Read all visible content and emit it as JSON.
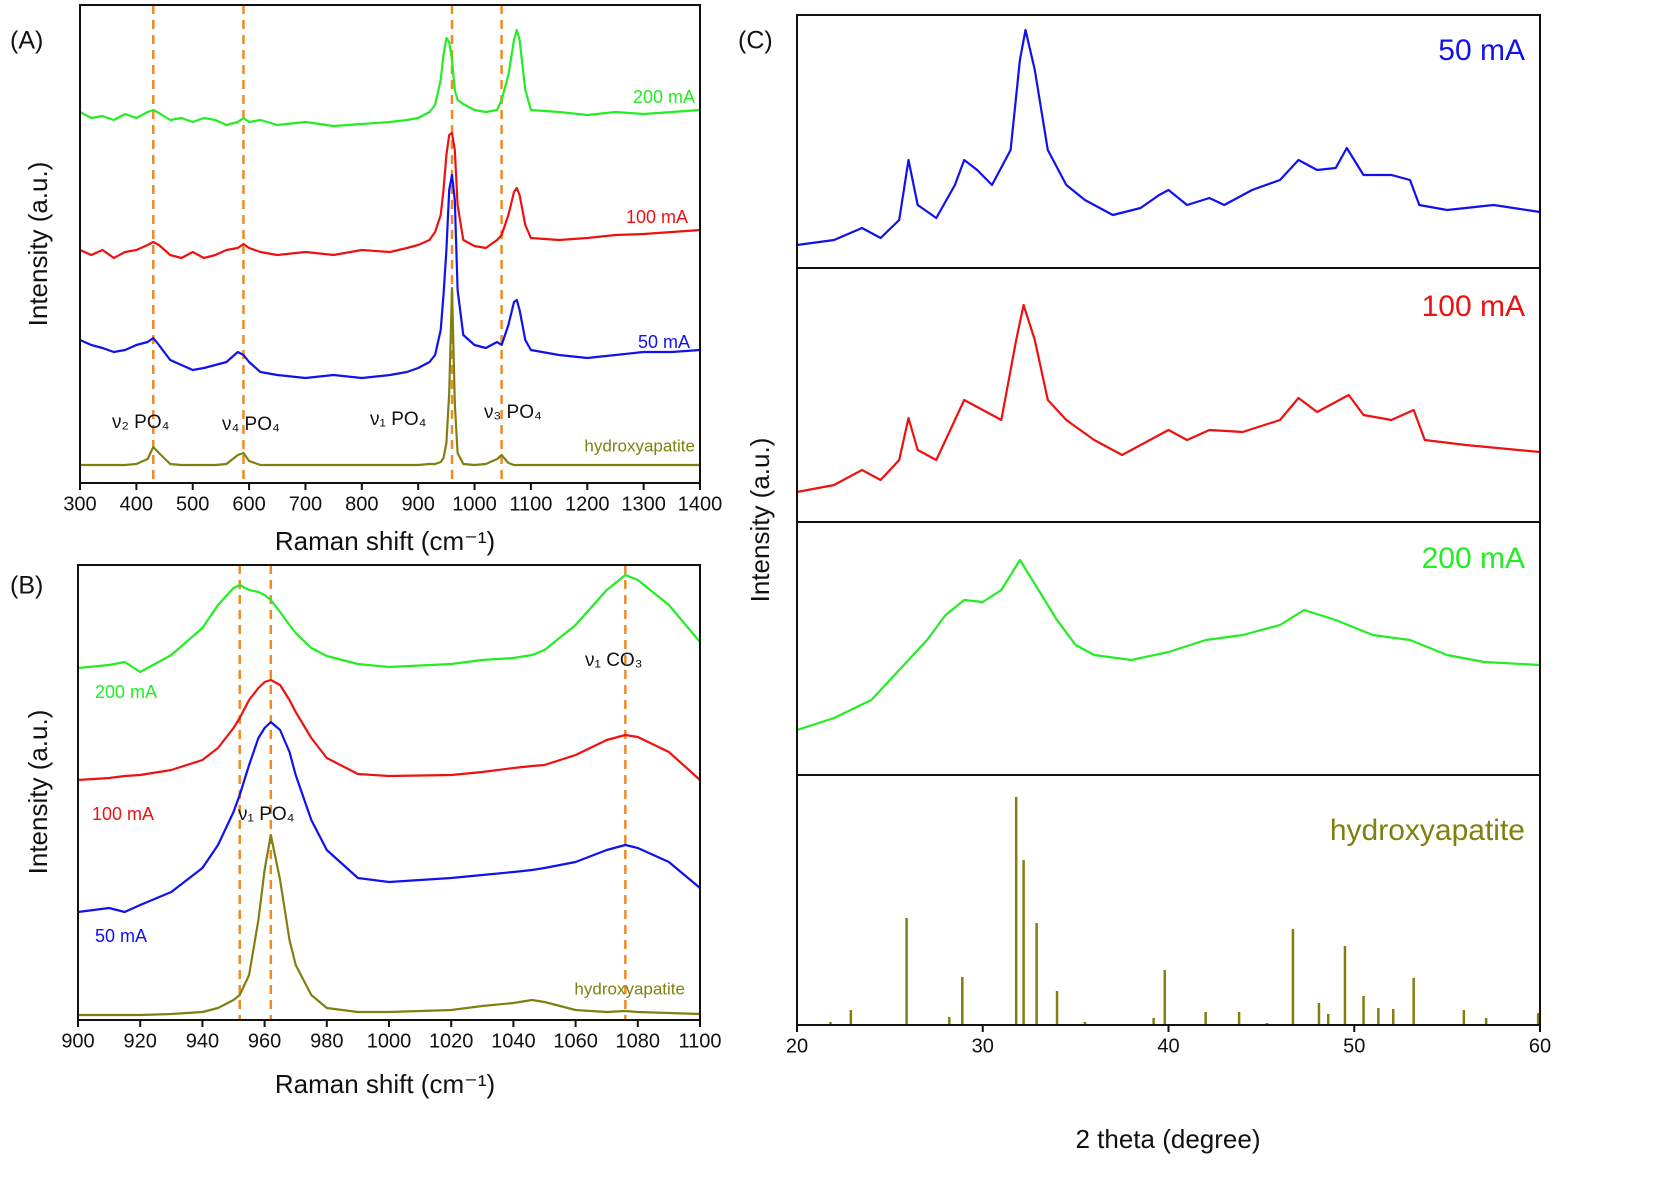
{
  "chart_data": [
    {
      "type": "line",
      "panel_label": "(A)",
      "xlabel": "Raman shift (cm⁻¹)",
      "ylabel": "Intensity (a.u.)",
      "xlim": [
        300,
        1400
      ],
      "xticks": [
        300,
        400,
        500,
        600,
        700,
        800,
        900,
        1000,
        1100,
        1200,
        1300,
        1400
      ],
      "ylim": [
        0,
        478
      ],
      "x": [
        300,
        320,
        340,
        360,
        380,
        400,
        420,
        430,
        440,
        460,
        480,
        500,
        520,
        540,
        560,
        580,
        590,
        600,
        620,
        650,
        700,
        750,
        800,
        850,
        880,
        900,
        920,
        930,
        940,
        945,
        950,
        955,
        960,
        965,
        970,
        980,
        1000,
        1020,
        1040,
        1048,
        1060,
        1070,
        1075,
        1080,
        1090,
        1100,
        1150,
        1200,
        1250,
        1300,
        1350,
        1400
      ],
      "series": [
        {
          "name": "200 mA",
          "color": "#22ee22",
          "values": [
            371,
            365,
            367,
            363,
            369,
            365,
            371,
            373,
            370,
            363,
            365,
            361,
            365,
            363,
            358,
            361,
            365,
            361,
            363,
            358,
            361,
            357,
            359,
            361,
            363,
            365,
            371,
            378,
            403,
            428,
            445,
            441,
            423,
            393,
            383,
            379,
            373,
            371,
            373,
            383,
            408,
            443,
            453,
            443,
            393,
            373,
            371,
            368,
            371,
            369,
            371,
            373
          ]
        },
        {
          "name": "100 mA",
          "color": "#ee1111",
          "values": [
            233,
            228,
            233,
            225,
            231,
            233,
            238,
            241,
            238,
            228,
            225,
            231,
            225,
            228,
            233,
            235,
            239,
            235,
            231,
            228,
            231,
            228,
            233,
            231,
            235,
            238,
            243,
            251,
            268,
            293,
            328,
            348,
            350,
            333,
            278,
            243,
            237,
            235,
            243,
            248,
            268,
            291,
            295,
            288,
            258,
            245,
            243,
            245,
            248,
            249,
            251,
            253
          ]
        },
        {
          "name": "50 mA",
          "color": "#1111ee",
          "values": [
            143,
            138,
            135,
            131,
            133,
            138,
            141,
            145,
            138,
            123,
            118,
            113,
            115,
            118,
            121,
            131,
            128,
            121,
            111,
            108,
            105,
            108,
            105,
            108,
            111,
            115,
            121,
            128,
            153,
            188,
            233,
            293,
            308,
            283,
            193,
            148,
            138,
            135,
            141,
            138,
            158,
            181,
            183,
            173,
            143,
            133,
            128,
            125,
            128,
            131,
            131,
            133
          ]
        },
        {
          "name": "hydroxyapatite",
          "color": "#808010",
          "values": [
            18,
            18,
            18,
            18,
            18,
            19,
            24,
            36,
            30,
            19,
            18,
            18,
            18,
            18,
            19,
            28,
            30,
            22,
            18,
            18,
            18,
            18,
            18,
            18,
            18,
            18,
            19,
            19,
            21,
            25,
            40,
            90,
            195,
            80,
            30,
            19,
            18,
            19,
            24,
            28,
            20,
            18,
            18,
            18,
            18,
            18,
            18,
            18,
            18,
            18,
            18,
            18
          ]
        }
      ],
      "markers": {
        "color": "#f08a24",
        "values": [
          430,
          590,
          960,
          1048
        ]
      },
      "annotations": [
        "ν₂ PO₄",
        "ν₄ PO₄",
        "ν₁ PO₄",
        "ν₃ PO₄"
      ]
    },
    {
      "type": "line",
      "panel_label": "(B)",
      "xlabel": "Raman shift (cm⁻¹)",
      "ylabel": "Intensity (a.u.)",
      "xlim": [
        900,
        1100
      ],
      "xticks": [
        900,
        920,
        940,
        960,
        980,
        1000,
        1020,
        1040,
        1060,
        1080,
        1100
      ],
      "ylim": [
        0,
        455
      ],
      "x": [
        900,
        910,
        915,
        920,
        930,
        940,
        945,
        950,
        952,
        955,
        958,
        960,
        962,
        965,
        968,
        970,
        975,
        980,
        990,
        1000,
        1020,
        1030,
        1040,
        1046,
        1050,
        1060,
        1070,
        1076,
        1080,
        1090,
        1100
      ],
      "series": [
        {
          "name": "200 mA",
          "color": "#22ee22",
          "values": [
            352,
            355,
            358,
            348,
            365,
            392,
            415,
            432,
            435,
            430,
            428,
            425,
            420,
            408,
            395,
            387,
            372,
            364,
            356,
            353,
            356,
            360,
            362,
            365,
            370,
            395,
            430,
            445,
            440,
            415,
            378
          ]
        },
        {
          "name": "100 mA",
          "color": "#ee1111",
          "values": [
            240,
            242,
            244,
            245,
            250,
            260,
            272,
            292,
            302,
            320,
            332,
            338,
            340,
            335,
            320,
            308,
            282,
            262,
            246,
            244,
            245,
            248,
            252,
            254,
            255,
            265,
            280,
            285,
            283,
            268,
            240
          ]
        },
        {
          "name": "50 mA",
          "color": "#1111ee",
          "values": [
            108,
            112,
            108,
            115,
            128,
            152,
            175,
            208,
            225,
            255,
            282,
            292,
            298,
            290,
            268,
            245,
            200,
            170,
            142,
            138,
            142,
            145,
            148,
            150,
            152,
            158,
            170,
            175,
            172,
            158,
            132
          ]
        },
        {
          "name": "hydroxyapatite",
          "color": "#808010",
          "values": [
            5,
            5,
            5,
            5,
            6,
            8,
            12,
            20,
            25,
            45,
            100,
            150,
            185,
            140,
            80,
            55,
            25,
            12,
            8,
            8,
            10,
            14,
            17,
            20,
            18,
            10,
            8,
            9,
            8,
            7,
            6
          ]
        }
      ],
      "markers": {
        "color": "#f08a24",
        "values": [
          952,
          962,
          1076
        ]
      },
      "annotations": [
        "ν₁ PO₄",
        "ν₁ CO₃"
      ]
    },
    {
      "type": "stacked",
      "panel_label": "(C)",
      "xlabel": "2 theta (degree)",
      "ylabel": "Intensity (a.u.)",
      "xlim": [
        20,
        60
      ],
      "xticks": [
        20,
        30,
        40,
        50,
        60
      ],
      "series": [
        {
          "name": "50 mA",
          "color": "#1111ee",
          "type": "line",
          "ylim": [
            0,
            253
          ],
          "x": [
            20,
            22,
            23.5,
            24.5,
            25.5,
            26,
            26.5,
            27.5,
            28.5,
            29,
            29.7,
            30.5,
            31.5,
            32,
            32.3,
            32.8,
            33.5,
            34.5,
            35.5,
            37,
            38.5,
            39.5,
            40,
            41,
            42.2,
            43,
            44.5,
            46,
            47,
            48,
            49,
            49.6,
            50.5,
            52,
            53,
            53.5,
            55,
            57.5,
            60
          ],
          "values": [
            23,
            28,
            40,
            30,
            48,
            108,
            63,
            50,
            83,
            108,
            98,
            83,
            118,
            208,
            238,
            198,
            118,
            83,
            68,
            53,
            60,
            73,
            78,
            63,
            70,
            63,
            78,
            88,
            108,
            98,
            100,
            120,
            93,
            93,
            88,
            63,
            58,
            63,
            56
          ]
        },
        {
          "name": "100 mA",
          "color": "#ee1111",
          "type": "line",
          "ylim": [
            0,
            254
          ],
          "x": [
            20,
            22,
            23.5,
            24.5,
            25.5,
            26,
            26.5,
            27.5,
            28.5,
            29,
            30,
            31,
            31.8,
            32.2,
            32.8,
            33.5,
            34.5,
            36,
            37.5,
            39,
            40,
            41,
            42.2,
            44,
            46,
            47,
            48,
            49.7,
            50.5,
            52,
            53.2,
            53.8,
            56,
            60
          ],
          "values": [
            30,
            37,
            52,
            42,
            62,
            104,
            72,
            62,
            102,
            122,
            112,
            102,
            182,
            217,
            182,
            122,
            102,
            82,
            67,
            82,
            92,
            82,
            92,
            90,
            102,
            124,
            110,
            127,
            107,
            102,
            112,
            82,
            77,
            70
          ]
        },
        {
          "name": "200 mA",
          "color": "#22ee22",
          "type": "line",
          "ylim": [
            0,
            253
          ],
          "x": [
            20,
            22,
            24,
            25,
            26,
            27,
            28,
            29,
            30,
            31,
            32,
            33,
            34,
            35,
            36,
            38,
            40,
            42,
            44,
            46,
            47.3,
            49,
            51,
            53,
            55,
            57,
            60
          ],
          "values": [
            45,
            57,
            75,
            95,
            115,
            135,
            160,
            175,
            173,
            185,
            215,
            185,
            155,
            130,
            120,
            115,
            123,
            135,
            140,
            150,
            165,
            155,
            140,
            135,
            120,
            113,
            110
          ]
        },
        {
          "name": "hydroxyapatite",
          "color": "#808010",
          "type": "stick",
          "ylim": [
            0,
            250
          ],
          "x": [
            21.8,
            22.9,
            25.9,
            28.2,
            28.9,
            31.8,
            32.2,
            32.9,
            34.0,
            35.5,
            39.2,
            39.8,
            42.0,
            43.8,
            45.3,
            46.7,
            48.1,
            48.6,
            49.5,
            50.5,
            51.3,
            52.1,
            53.2,
            55.9,
            57.1,
            59.9
          ],
          "values": [
            3,
            15,
            107,
            8,
            48,
            228,
            165,
            102,
            34,
            3,
            7,
            55,
            13,
            13,
            2,
            96,
            22,
            11,
            79,
            29,
            17,
            16,
            47,
            15,
            7,
            12
          ]
        }
      ]
    }
  ]
}
